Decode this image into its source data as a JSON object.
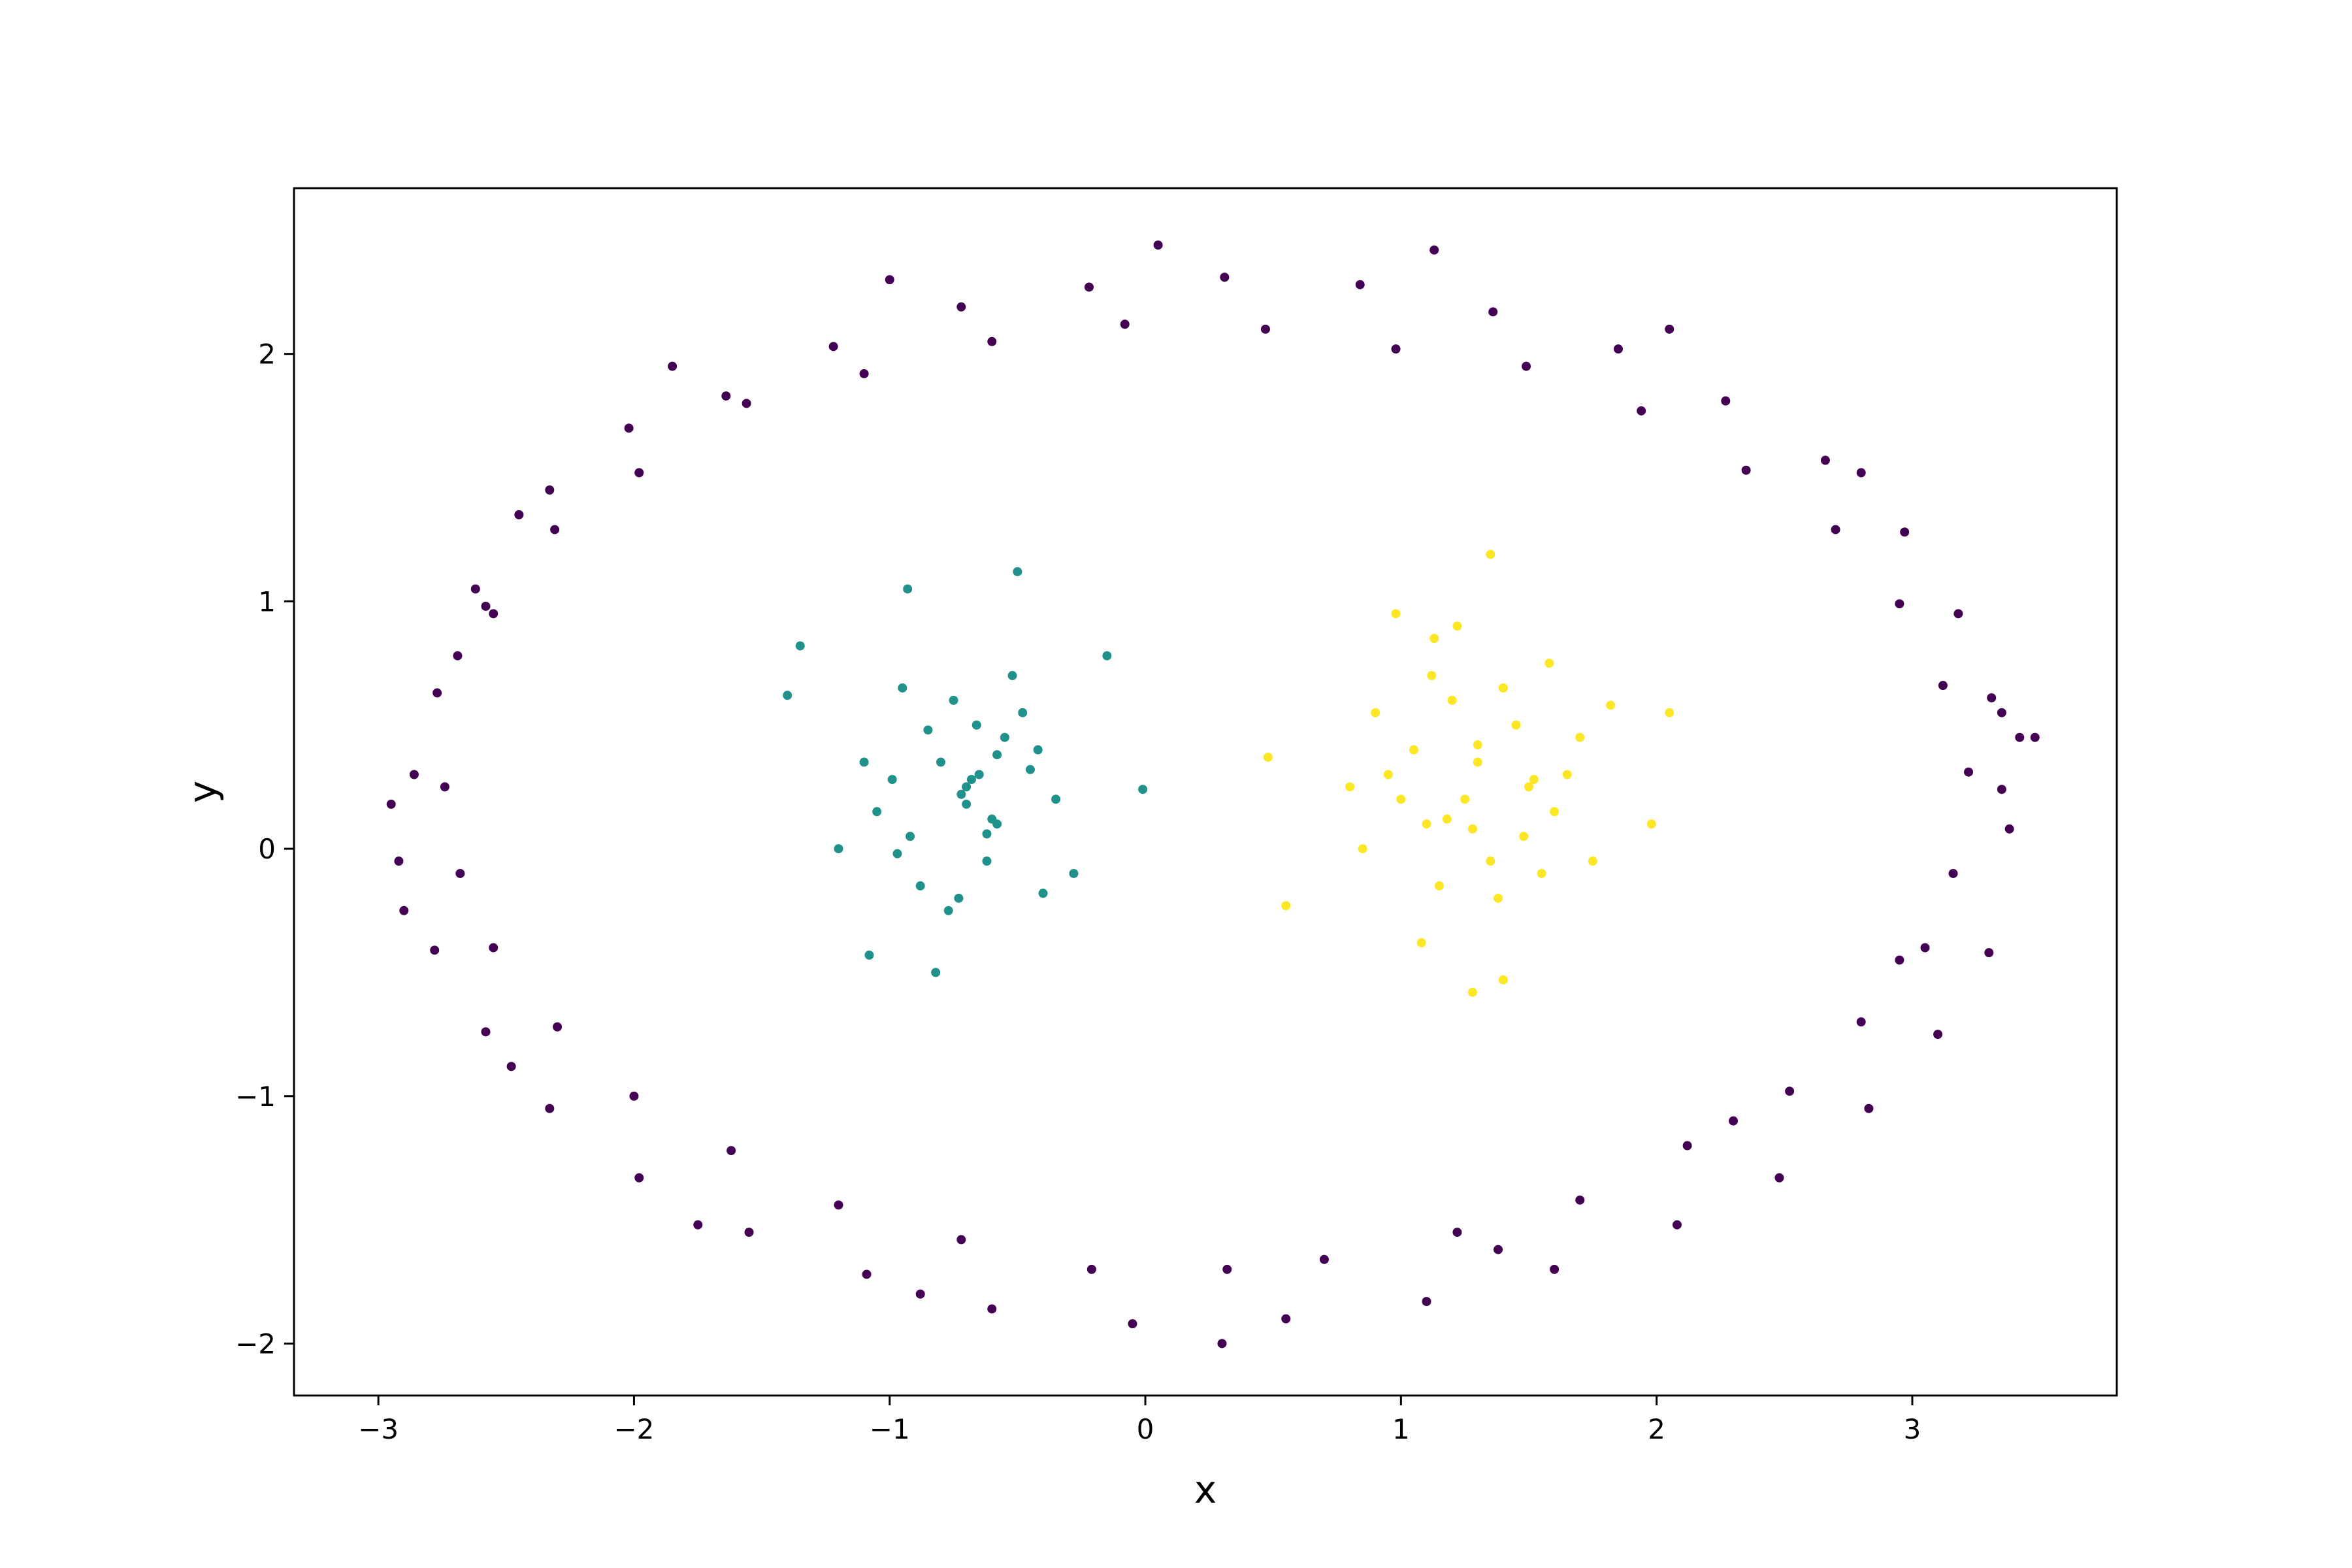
{
  "chart_data": {
    "type": "scatter",
    "x_label": "x",
    "y_label": "y",
    "xlim": [
      -3.33,
      3.8
    ],
    "ylim": [
      -2.21,
      2.67
    ],
    "xticks": [
      {
        "value": -3,
        "label": "−3"
      },
      {
        "value": -2,
        "label": "−2"
      },
      {
        "value": -1,
        "label": "−1"
      },
      0,
      1,
      2,
      3
    ],
    "yticks": [
      {
        "value": -2,
        "label": "−2"
      },
      {
        "value": -1,
        "label": "−1"
      },
      0,
      1,
      2
    ],
    "grid": false,
    "series": [
      {
        "color": "#440154",
        "x": [
          3.35,
          3.22,
          3.31,
          3.12,
          3.18,
          2.95,
          2.97,
          2.7,
          2.66,
          2.35,
          2.27,
          1.94,
          1.85,
          1.49,
          1.36,
          0.98,
          0.84,
          0.47,
          0.31,
          -0.08,
          -0.22,
          -0.6,
          -0.72,
          -1.1,
          -1.22,
          -1.56,
          -1.64,
          -1.98,
          -2.02,
          -2.31,
          -2.33,
          -2.58,
          -2.55,
          -2.77,
          -2.69,
          -2.86,
          -2.74,
          -2.92,
          -2.68,
          -2.78,
          -2.55,
          -2.58,
          -2.3,
          -2.33,
          -2.0,
          -1.98,
          -1.62,
          -1.55,
          -1.2,
          -1.09,
          -0.72,
          -0.6,
          -0.21,
          -0.05,
          0.32,
          0.55,
          0.7,
          1.1,
          1.22,
          1.6,
          1.7,
          2.08,
          2.12,
          2.48,
          2.52,
          2.83,
          2.8,
          3.1,
          3.05,
          3.3,
          3.16,
          3.38,
          3.42,
          2.8,
          2.05,
          1.13,
          0.05,
          -1.0,
          -1.85,
          -2.45,
          -2.95,
          -2.9,
          -2.48,
          -1.75,
          -0.88,
          0.3,
          1.38,
          2.3,
          2.95,
          3.35,
          3.48,
          -2.62
        ],
        "y": [
          0.24,
          0.31,
          0.61,
          0.66,
          0.95,
          0.99,
          1.28,
          1.29,
          1.57,
          1.53,
          1.81,
          1.77,
          2.02,
          1.95,
          2.17,
          2.02,
          2.28,
          2.1,
          2.31,
          2.12,
          2.27,
          2.05,
          2.19,
          1.92,
          2.03,
          1.8,
          1.83,
          1.52,
          1.7,
          1.29,
          1.45,
          0.98,
          0.95,
          0.63,
          0.78,
          0.3,
          0.25,
          -0.05,
          -0.1,
          -0.41,
          -0.4,
          -0.74,
          -0.72,
          -1.05,
          -1.0,
          -1.33,
          -1.22,
          -1.55,
          -1.44,
          -1.72,
          -1.58,
          -1.86,
          -1.7,
          -1.92,
          -1.7,
          -1.9,
          -1.66,
          -1.83,
          -1.55,
          -1.7,
          -1.42,
          -1.52,
          -1.2,
          -1.33,
          -0.98,
          -1.05,
          -0.7,
          -0.75,
          -0.4,
          -0.42,
          -0.1,
          0.08,
          0.45,
          1.52,
          2.1,
          2.42,
          2.44,
          2.3,
          1.95,
          1.35,
          0.18,
          -0.25,
          -0.88,
          -1.52,
          -1.8,
          -2.0,
          -1.62,
          -1.1,
          -0.45,
          0.55,
          0.45,
          1.05
        ]
      },
      {
        "color": "#21918c",
        "x": [
          -0.7,
          -0.65,
          -0.92,
          -0.55,
          -0.8,
          -1.05,
          -0.48,
          -0.62,
          -0.75,
          -0.95,
          -0.35,
          -0.58,
          -1.2,
          -0.88,
          -0.68,
          -0.42,
          -1.4,
          -0.73,
          -0.52,
          -0.99,
          -0.28,
          -0.85,
          -0.6,
          -1.1,
          -0.45,
          -0.77,
          -0.66,
          -0.93,
          -0.15,
          -0.5,
          -1.35,
          -0.82,
          -0.7,
          -0.58,
          -0.97,
          -0.4,
          -0.72,
          -1.08,
          -0.62,
          -0.01
        ],
        "y": [
          0.25,
          0.3,
          0.05,
          0.45,
          0.35,
          0.15,
          0.55,
          -0.05,
          0.6,
          0.65,
          0.2,
          0.1,
          0.0,
          -0.15,
          0.28,
          0.4,
          0.62,
          -0.2,
          0.7,
          0.28,
          -0.1,
          0.48,
          0.12,
          0.35,
          0.32,
          -0.25,
          0.5,
          1.05,
          0.78,
          1.12,
          0.82,
          -0.5,
          0.18,
          0.38,
          -0.02,
          -0.18,
          0.22,
          -0.43,
          0.06,
          0.24
        ]
      },
      {
        "color": "#fde725",
        "x": [
          1.25,
          1.3,
          1.1,
          1.45,
          1.05,
          1.6,
          0.95,
          1.35,
          1.2,
          1.5,
          0.85,
          1.7,
          1.15,
          1.4,
          1.0,
          1.55,
          1.28,
          0.9,
          1.65,
          1.12,
          1.38,
          0.8,
          1.82,
          1.22,
          1.48,
          1.08,
          1.3,
          0.55,
          2.05,
          1.58,
          0.48,
          1.98,
          1.13,
          1.4,
          0.98,
          1.75,
          1.28,
          1.52,
          1.18,
          1.35
        ],
        "y": [
          0.2,
          0.35,
          0.1,
          0.5,
          0.4,
          0.15,
          0.3,
          -0.05,
          0.6,
          0.25,
          0.0,
          0.45,
          -0.15,
          0.65,
          0.2,
          -0.1,
          0.08,
          0.55,
          0.3,
          0.7,
          -0.2,
          0.25,
          0.58,
          0.9,
          0.05,
          -0.38,
          0.42,
          -0.23,
          0.55,
          0.75,
          0.37,
          0.1,
          0.85,
          -0.53,
          0.95,
          -0.05,
          -0.58,
          0.28,
          0.12,
          1.19
        ]
      }
    ]
  }
}
